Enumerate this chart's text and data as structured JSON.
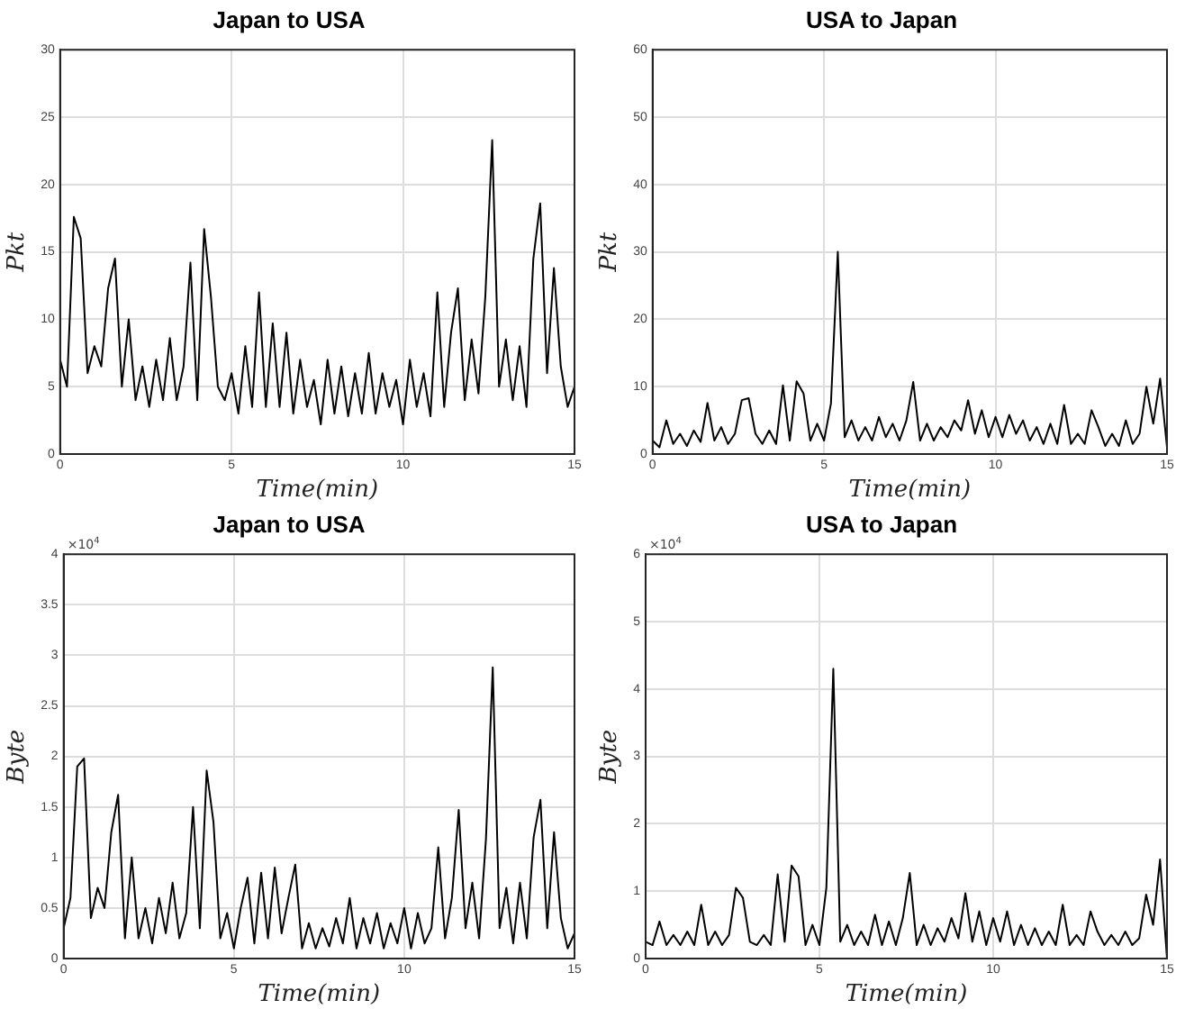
{
  "chart_data": [
    {
      "type": "line",
      "title": "Japan to USA",
      "xlabel": "Time(min)",
      "ylabel": "Pkt",
      "color": "#000000",
      "grid": true,
      "xlim": [
        0,
        15
      ],
      "xticks": [
        0,
        5,
        10,
        15
      ],
      "ylim": [
        0,
        30
      ],
      "yticks": [
        0,
        5,
        10,
        15,
        20,
        25,
        30
      ],
      "x": [
        0,
        0.2,
        0.4,
        0.6,
        0.8,
        1,
        1.2,
        1.4,
        1.6,
        1.8,
        2,
        2.2,
        2.4,
        2.6,
        2.8,
        3,
        3.2,
        3.4,
        3.6,
        3.8,
        4,
        4.2,
        4.4,
        4.6,
        4.8,
        5,
        5.2,
        5.4,
        5.6,
        5.8,
        6,
        6.2,
        6.4,
        6.6,
        6.8,
        7,
        7.2,
        7.4,
        7.6,
        7.8,
        8,
        8.2,
        8.4,
        8.6,
        8.8,
        9,
        9.2,
        9.4,
        9.6,
        9.8,
        10,
        10.2,
        10.4,
        10.6,
        10.8,
        11,
        11.2,
        11.4,
        11.6,
        11.8,
        12,
        12.2,
        12.4,
        12.6,
        12.8,
        13,
        13.2,
        13.4,
        13.6,
        13.8,
        14,
        14.2,
        14.4,
        14.6,
        14.8,
        15
      ],
      "values": [
        7,
        5,
        17.6,
        16,
        6,
        8,
        6.5,
        12.3,
        14.5,
        5,
        10,
        4,
        6.5,
        3.5,
        7,
        4,
        8.6,
        4,
        6.5,
        14.2,
        4,
        16.7,
        11.6,
        5,
        4,
        6,
        3,
        8,
        3.5,
        12,
        3.5,
        9.7,
        3.5,
        9,
        3,
        7,
        3.5,
        5.5,
        2.2,
        7,
        3,
        6.5,
        2.8,
        6,
        3,
        7.5,
        3,
        6,
        3.5,
        5.5,
        2.2,
        7,
        3.5,
        6,
        2.8,
        12,
        3.5,
        9,
        12.3,
        4,
        8.5,
        4.5,
        11.7,
        23.3,
        5,
        8.5,
        4,
        8,
        3.5,
        14.5,
        18.6,
        6,
        13.8,
        6.5,
        3.5,
        5
      ]
    },
    {
      "type": "line",
      "title": "USA to Japan",
      "xlabel": "Time(min)",
      "ylabel": "Pkt",
      "color": "#000000",
      "grid": true,
      "xlim": [
        0,
        15
      ],
      "xticks": [
        0,
        5,
        10,
        15
      ],
      "ylim": [
        0,
        60
      ],
      "yticks": [
        0,
        10,
        20,
        30,
        40,
        50,
        60
      ],
      "x": [
        0,
        0.2,
        0.4,
        0.6,
        0.8,
        1,
        1.2,
        1.4,
        1.6,
        1.8,
        2,
        2.2,
        2.4,
        2.6,
        2.8,
        3,
        3.2,
        3.4,
        3.6,
        3.8,
        4,
        4.2,
        4.4,
        4.6,
        4.8,
        5,
        5.2,
        5.4,
        5.6,
        5.8,
        6,
        6.2,
        6.4,
        6.6,
        6.8,
        7,
        7.2,
        7.4,
        7.6,
        7.8,
        8,
        8.2,
        8.4,
        8.6,
        8.8,
        9,
        9.2,
        9.4,
        9.6,
        9.8,
        10,
        10.2,
        10.4,
        10.6,
        10.8,
        11,
        11.2,
        11.4,
        11.6,
        11.8,
        12,
        12.2,
        12.4,
        12.6,
        12.8,
        13,
        13.2,
        13.4,
        13.6,
        13.8,
        14,
        14.2,
        14.4,
        14.6,
        14.8,
        15
      ],
      "values": [
        2,
        1,
        5,
        1.5,
        3,
        1.2,
        3.5,
        1.8,
        7.6,
        2,
        4,
        1.5,
        3,
        8,
        8.3,
        3,
        1.5,
        3.5,
        1.5,
        10.2,
        2,
        10.8,
        9,
        2,
        4.5,
        2,
        7.5,
        30,
        2.5,
        5,
        2,
        4,
        2,
        5.5,
        2.5,
        4.5,
        2,
        5,
        10.7,
        2,
        4.5,
        2,
        4,
        2.5,
        5,
        3.5,
        8,
        3,
        6.5,
        2.5,
        5.5,
        2.5,
        5.8,
        3,
        5,
        2,
        4,
        1.5,
        4.5,
        1.5,
        7.3,
        1.5,
        3,
        1.5,
        6.5,
        4,
        1.2,
        3,
        1.2,
        5,
        1.5,
        3,
        10,
        4.5,
        11.2,
        1
      ]
    },
    {
      "type": "line",
      "title": "Japan to USA",
      "xlabel": "Time(min)",
      "ylabel": "Byte",
      "annotations": [
        "×10$^{4}$"
      ],
      "color": "#000000",
      "grid": true,
      "xlim": [
        0,
        15
      ],
      "xticks": [
        0,
        5,
        10,
        15
      ],
      "ylim": [
        0,
        4
      ],
      "yticks": [
        0,
        0.5,
        1,
        1.5,
        2,
        2.5,
        3,
        3.5,
        4
      ],
      "x": [
        0,
        0.2,
        0.4,
        0.6,
        0.8,
        1,
        1.2,
        1.4,
        1.6,
        1.8,
        2,
        2.2,
        2.4,
        2.6,
        2.8,
        3,
        3.2,
        3.4,
        3.6,
        3.8,
        4,
        4.2,
        4.4,
        4.6,
        4.8,
        5,
        5.2,
        5.4,
        5.6,
        5.8,
        6,
        6.2,
        6.4,
        6.6,
        6.8,
        7,
        7.2,
        7.4,
        7.6,
        7.8,
        8,
        8.2,
        8.4,
        8.6,
        8.8,
        9,
        9.2,
        9.4,
        9.6,
        9.8,
        10,
        10.2,
        10.4,
        10.6,
        10.8,
        11,
        11.2,
        11.4,
        11.6,
        11.8,
        12,
        12.2,
        12.4,
        12.6,
        12.8,
        13,
        13.2,
        13.4,
        13.6,
        13.8,
        14,
        14.2,
        14.4,
        14.6,
        14.8,
        15
      ],
      "values": [
        0.3,
        0.6,
        1.9,
        1.98,
        0.4,
        0.7,
        0.5,
        1.25,
        1.62,
        0.2,
        1,
        0.2,
        0.5,
        0.15,
        0.6,
        0.25,
        0.75,
        0.2,
        0.45,
        1.5,
        0.3,
        1.86,
        1.35,
        0.2,
        0.45,
        0.1,
        0.5,
        0.8,
        0.15,
        0.85,
        0.2,
        0.9,
        0.25,
        0.6,
        0.93,
        0.1,
        0.35,
        0.1,
        0.3,
        0.12,
        0.4,
        0.15,
        0.6,
        0.1,
        0.4,
        0.15,
        0.45,
        0.1,
        0.35,
        0.15,
        0.5,
        0.1,
        0.45,
        0.15,
        0.3,
        1.1,
        0.2,
        0.6,
        1.47,
        0.3,
        0.75,
        0.2,
        1.18,
        2.88,
        0.3,
        0.7,
        0.15,
        0.75,
        0.2,
        1.2,
        1.57,
        0.3,
        1.25,
        0.4,
        0.1,
        0.25
      ]
    },
    {
      "type": "line",
      "title": "USA to Japan",
      "xlabel": "Time(min)",
      "ylabel": "Byte",
      "annotations": [
        "×10$^{4}$"
      ],
      "color": "#000000",
      "grid": true,
      "xlim": [
        0,
        15
      ],
      "xticks": [
        0,
        5,
        10,
        15
      ],
      "ylim": [
        0,
        6
      ],
      "yticks": [
        0,
        1,
        2,
        3,
        4,
        5,
        6
      ],
      "x": [
        0,
        0.2,
        0.4,
        0.6,
        0.8,
        1,
        1.2,
        1.4,
        1.6,
        1.8,
        2,
        2.2,
        2.4,
        2.6,
        2.8,
        3,
        3.2,
        3.4,
        3.6,
        3.8,
        4,
        4.2,
        4.4,
        4.6,
        4.8,
        5,
        5.2,
        5.4,
        5.6,
        5.8,
        6,
        6.2,
        6.4,
        6.6,
        6.8,
        7,
        7.2,
        7.4,
        7.6,
        7.8,
        8,
        8.2,
        8.4,
        8.6,
        8.8,
        9,
        9.2,
        9.4,
        9.6,
        9.8,
        10,
        10.2,
        10.4,
        10.6,
        10.8,
        11,
        11.2,
        11.4,
        11.6,
        11.8,
        12,
        12.2,
        12.4,
        12.6,
        12.8,
        13,
        13.2,
        13.4,
        13.6,
        13.8,
        14,
        14.2,
        14.4,
        14.6,
        14.8,
        15
      ],
      "values": [
        0.25,
        0.2,
        0.55,
        0.2,
        0.35,
        0.2,
        0.4,
        0.2,
        0.8,
        0.2,
        0.4,
        0.2,
        0.35,
        1.05,
        0.9,
        0.25,
        0.2,
        0.35,
        0.2,
        1.25,
        0.25,
        1.38,
        1.22,
        0.2,
        0.5,
        0.2,
        1.05,
        4.3,
        0.25,
        0.5,
        0.2,
        0.4,
        0.2,
        0.65,
        0.2,
        0.55,
        0.2,
        0.6,
        1.27,
        0.2,
        0.5,
        0.2,
        0.45,
        0.25,
        0.6,
        0.3,
        0.97,
        0.25,
        0.7,
        0.2,
        0.6,
        0.25,
        0.7,
        0.2,
        0.5,
        0.2,
        0.45,
        0.2,
        0.4,
        0.2,
        0.8,
        0.2,
        0.35,
        0.2,
        0.7,
        0.4,
        0.2,
        0.35,
        0.2,
        0.4,
        0.2,
        0.3,
        0.95,
        0.5,
        1.47,
        0
      ]
    }
  ]
}
